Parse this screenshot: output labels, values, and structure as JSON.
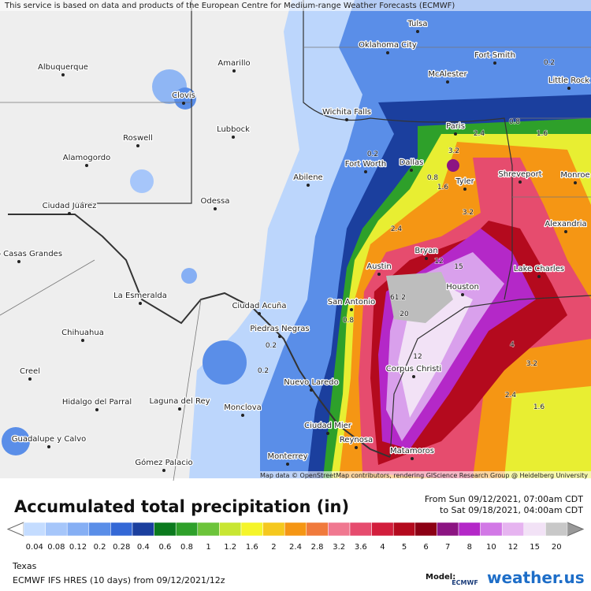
{
  "header": {
    "attribution": "This service is based on data and products of the European Centre for Medium-range Weather Forecasts (ECMWF)"
  },
  "map": {
    "cities": [
      "Tulsa",
      "Oklahoma City",
      "Fort Smith",
      "Albuquerque",
      "Amarillo",
      "McAlester",
      "Little Rock",
      "Clovis",
      "Wichita Falls",
      "Lubbock",
      "Paris",
      "Roswell",
      "Alamogordo",
      "Fort Worth",
      "Dallas",
      "Shreveport",
      "Tyler",
      "Abilene",
      "Monroe",
      "Odessa",
      "Ciudad Juárez",
      "Alexandria",
      "Bryan",
      "Nuevo Casas Grandes",
      "Austin",
      "Lake Charles",
      "Houston",
      "La Esmeralda",
      "San Antonio",
      "Ciudad Acuña",
      "Piedras Negras",
      "Chihuahua",
      "Corpus Christi",
      "Nuevo Laredo",
      "Creel",
      "Hidalgo del Parral",
      "Laguna del Rey",
      "Monclova",
      "Ciudad Mier",
      "Guadalupe y Calvo",
      "Reynosa",
      "Matamoros",
      "Monterrey",
      "Gómez Palacio"
    ],
    "annotations": [
      "61.2",
      "12",
      "15",
      "20",
      "12",
      "3.2",
      "2.4",
      "1.6",
      "0.8",
      "0.8",
      "1.6",
      "3.2",
      "2.4",
      "4",
      "3.2",
      "2.4",
      "1.6",
      "0.2",
      "0.8",
      "0.2",
      "0.2",
      "0.2"
    ],
    "credit": "Map data © OpenStreetMap contributors, rendering GIScience Research Group @ Heidelberg University"
  },
  "legend": {
    "title": "Accumulated total precipitation (in)",
    "period": [
      "From Sun 09/12/2021, 07:00am CDT",
      "to Sat 09/18/2021, 04:00am CDT"
    ],
    "items": [
      {
        "label": "0.04",
        "color": "#c4dcff"
      },
      {
        "label": "0.08",
        "color": "#a6c6fa"
      },
      {
        "label": "0.12",
        "color": "#86aff4"
      },
      {
        "label": "0.2",
        "color": "#5a8ee8"
      },
      {
        "label": "0.28",
        "color": "#3468d6"
      },
      {
        "label": "0.4",
        "color": "#1b3f9e"
      },
      {
        "label": "0.6",
        "color": "#0b7a1e"
      },
      {
        "label": "0.8",
        "color": "#2ea02a"
      },
      {
        "label": "1",
        "color": "#6cc43a"
      },
      {
        "label": "1.2",
        "color": "#c8e632"
      },
      {
        "label": "1.6",
        "color": "#f5f52a"
      },
      {
        "label": "2",
        "color": "#f5c81e"
      },
      {
        "label": "2.4",
        "color": "#f59614"
      },
      {
        "label": "2.8",
        "color": "#f07a3c"
      },
      {
        "label": "3.2",
        "color": "#f07890"
      },
      {
        "label": "3.6",
        "color": "#e64c6e"
      },
      {
        "label": "4",
        "color": "#d21e3c"
      },
      {
        "label": "5",
        "color": "#b40a1e"
      },
      {
        "label": "6",
        "color": "#8c0014"
      },
      {
        "label": "7",
        "color": "#8c1482"
      },
      {
        "label": "8",
        "color": "#b428c8"
      },
      {
        "label": "10",
        "color": "#d278e6"
      },
      {
        "label": "12",
        "color": "#e6b4f0"
      },
      {
        "label": "15",
        "color": "#f2e2f6"
      },
      {
        "label": "20",
        "color": "#c8c8c8"
      }
    ]
  },
  "footer": {
    "region": "Texas",
    "run": "ECMWF IFS HRES (10 days) from  09/12/2021/12z",
    "model_label": "Model:",
    "model": "ECMWF",
    "brand": "weather.us"
  }
}
